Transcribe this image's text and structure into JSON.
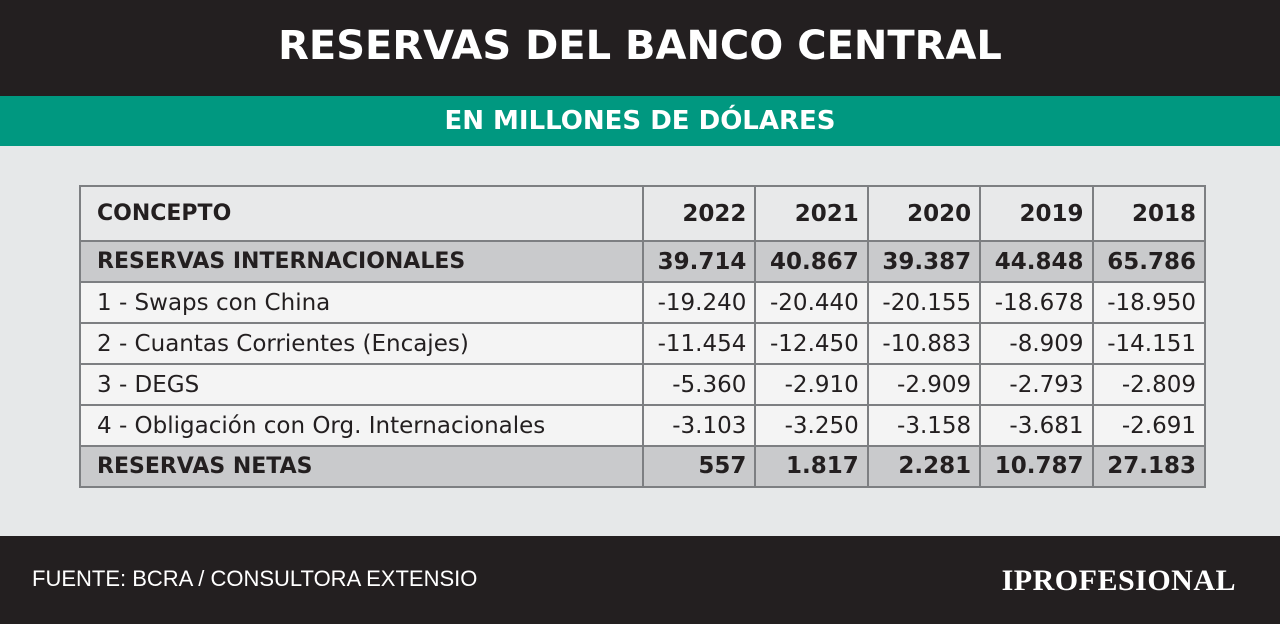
{
  "header": {
    "title": "RESERVAS DEL BANCO CENTRAL",
    "subtitle": "EN MILLONES DE DÓLARES"
  },
  "chart_data": {
    "type": "table",
    "columns": [
      "CONCEPTO",
      "2022",
      "2021",
      "2020",
      "2019",
      "2018"
    ],
    "rows": [
      {
        "style": "bold",
        "cells": [
          "RESERVAS INTERNACIONALES",
          "39.714",
          "40.867",
          "39.387",
          "44.848",
          "65.786"
        ]
      },
      {
        "style": "normal",
        "cells": [
          "1 - Swaps con China",
          "-19.240",
          "-20.440",
          "-20.155",
          "-18.678",
          "-18.950"
        ]
      },
      {
        "style": "normal",
        "cells": [
          "2 - Cuantas Corrientes (Encajes)",
          "-11.454",
          "-12.450",
          "-10.883",
          "-8.909",
          "-14.151"
        ]
      },
      {
        "style": "normal",
        "cells": [
          "3 - DEGS",
          "-5.360",
          "-2.910",
          "-2.909",
          "-2.793",
          "-2.809"
        ]
      },
      {
        "style": "normal",
        "cells": [
          "4 - Obligación con Org. Internacionales",
          "-3.103",
          "-3.250",
          "-3.158",
          "-3.681",
          "-2.691"
        ]
      },
      {
        "style": "bold",
        "cells": [
          "RESERVAS NETAS",
          "557",
          "1.817",
          "2.281",
          "10.787",
          "27.183"
        ]
      }
    ]
  },
  "footer": {
    "source": "FUENTE: BCRA / CONSULTORA EXTENSIO",
    "brand": "IPROFESIONAL"
  },
  "colors": {
    "dark": "#231f20",
    "accent": "#009880",
    "background": "#e6e8e9",
    "highlight_row": "#c9cacc"
  }
}
